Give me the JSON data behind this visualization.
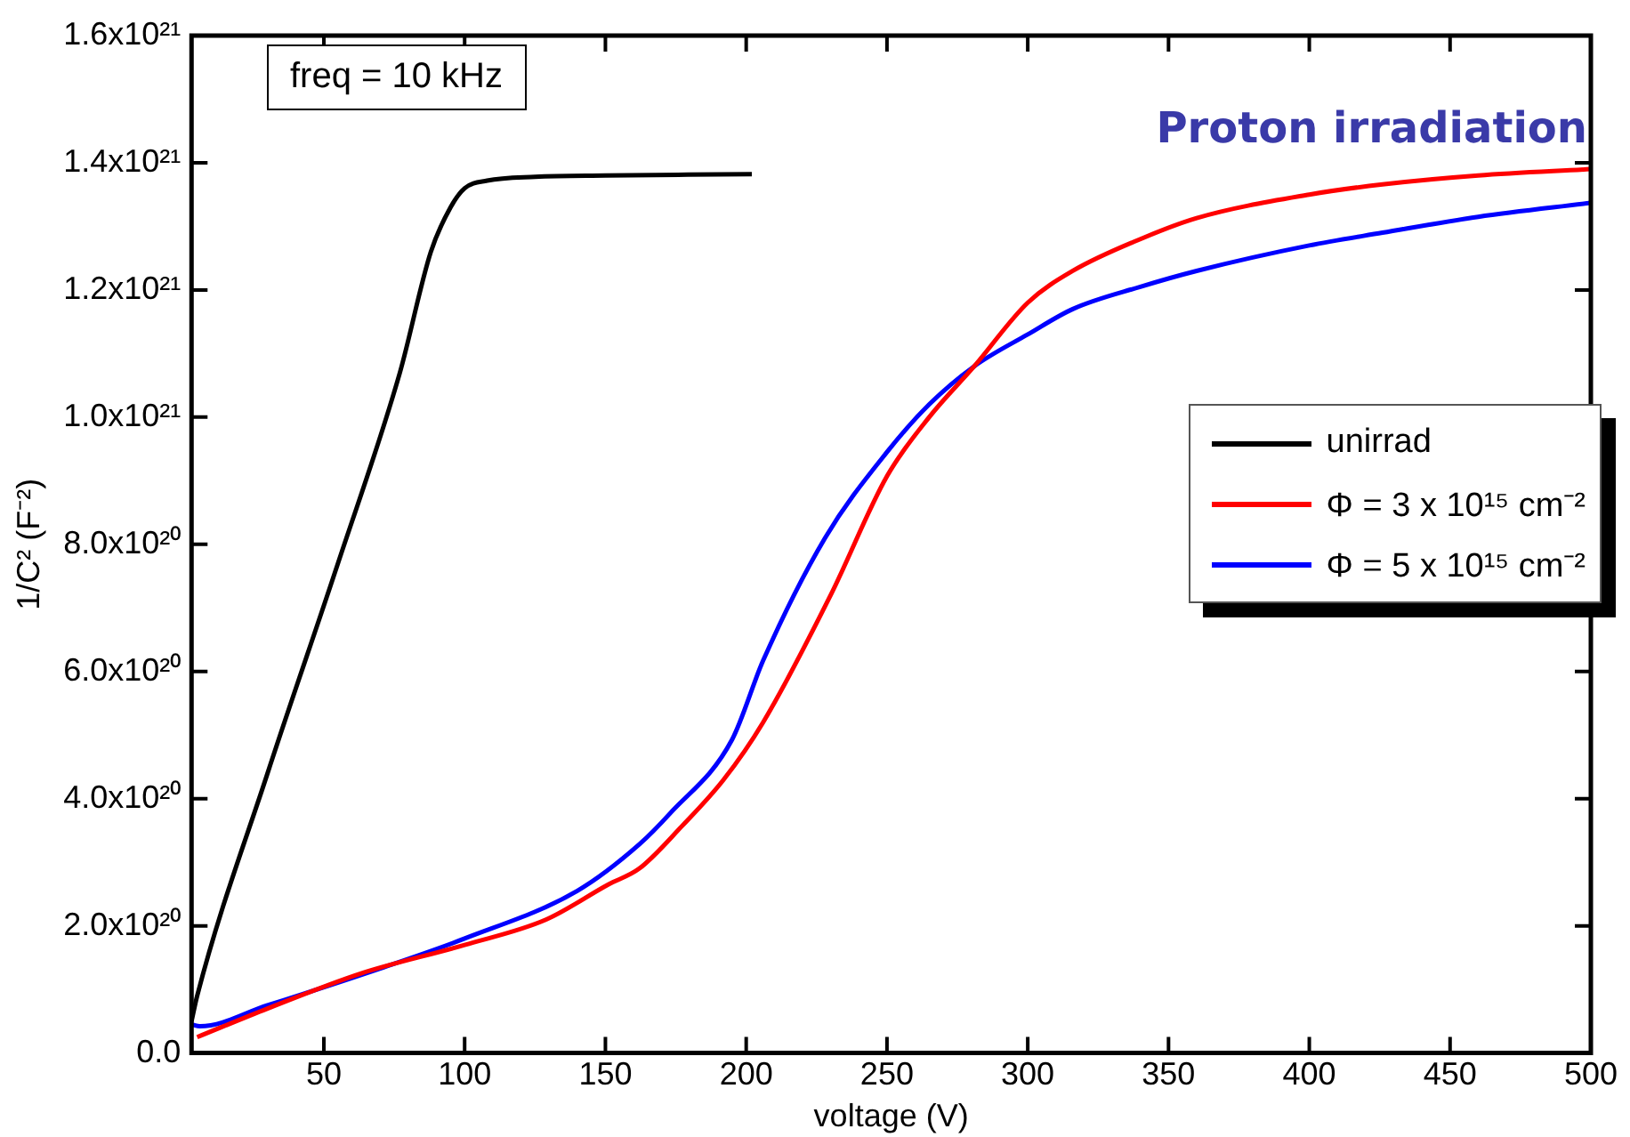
{
  "chart_data": {
    "type": "line",
    "xlabel": "voltage (V)",
    "ylabel": "1/C² (F⁻²)",
    "annotations": [
      "freq = 10 kHz",
      "Proton irradiation"
    ],
    "xlim": [
      3,
      500
    ],
    "xticks": [
      50,
      100,
      150,
      200,
      250,
      300,
      350,
      400,
      450,
      500
    ],
    "ylim": [
      0,
      1.6e+21
    ],
    "yticks": [
      {
        "value": 0,
        "label": "0.0"
      },
      {
        "value": 2e+20,
        "label": "2.0x10²⁰"
      },
      {
        "value": 4e+20,
        "label": "4.0x10²⁰"
      },
      {
        "value": 6e+20,
        "label": "6.0x10²⁰"
      },
      {
        "value": 8e+20,
        "label": "8.0x10²⁰"
      },
      {
        "value": 1e+21,
        "label": "1.0x10²¹"
      },
      {
        "value": 1.2e+21,
        "label": "1.2x10²¹"
      },
      {
        "value": 1.4e+21,
        "label": "1.4x10²¹"
      },
      {
        "value": 1.6e+21,
        "label": "1.6x10²¹"
      }
    ],
    "grid": false,
    "legend": "right",
    "marker": "none",
    "line_style": "solid",
    "series": [
      {
        "name": "unirrad",
        "color": "#000000",
        "x": [
          3,
          5,
          30,
          55,
          77,
          88,
          95,
          100,
          108,
          125,
          150,
          202
        ],
        "values": [
          5e+19,
          9e+19,
          4.4e+20,
          7.7e+20,
          1.07e+21,
          1.26e+21,
          1.33e+21,
          1.36e+21,
          1.372e+21,
          1.378e+21,
          1.38e+21,
          1.382e+21
        ]
      },
      {
        "name": "Φ = 3 x 10¹⁵ cm⁻²",
        "color": "#ff0000",
        "x": [
          5,
          30,
          63,
          100,
          129,
          151,
          162,
          177,
          192,
          206,
          230,
          250,
          265,
          281,
          300,
          316,
          340,
          360,
          400,
          426,
          460,
          500
        ],
        "values": [
          2.5e+19,
          7e+19,
          1.25e+20,
          1.7e+20,
          2.1e+20,
          2.65e+20,
          2.9e+20,
          3.56e+20,
          4.3e+20,
          5.2e+20,
          7.2e+20,
          9.07e+20,
          1e+21,
          1.08e+21,
          1.18e+21,
          1.23e+21,
          1.28e+21,
          1.313e+21,
          1.35e+21,
          1.366e+21,
          1.38e+21,
          1.39e+21
        ]
      },
      {
        "name": "Φ = 5 x 10¹⁵ cm⁻²",
        "color": "#0000ff",
        "x": [
          3,
          6,
          30,
          70,
          100,
          140,
          162,
          173,
          195,
          206,
          228,
          250,
          265,
          281,
          300,
          316,
          340,
          360,
          400,
          426,
          460,
          500
        ],
        "values": [
          4.5e+19,
          4.2e+19,
          7.5e+19,
          1.33e+20,
          1.8e+20,
          2.55e+20,
          3.28e+20,
          3.77e+20,
          4.93e+20,
          6.17e+20,
          8.1e+20,
          9.45e+20,
          1.02e+21,
          1.08e+21,
          1.13e+21,
          1.17e+21,
          1.205e+21,
          1.23e+21,
          1.27e+21,
          1.29e+21,
          1.315e+21,
          1.337e+21
        ]
      }
    ]
  }
}
